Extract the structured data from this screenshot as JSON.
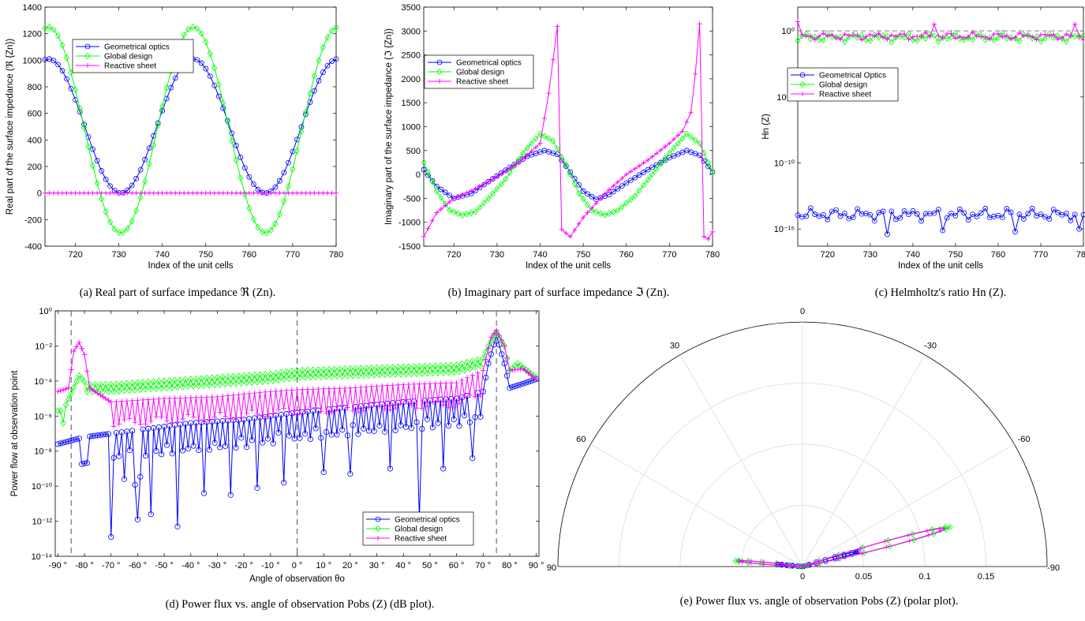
{
  "chart_data": [
    {
      "id": "a",
      "type": "line",
      "caption": "(a) Real part of surface impedance ℜ (Zn).",
      "xlabel": "Index of the unit cells",
      "ylabel": "Real part of the surface impedance (ℜ {Zn})",
      "xlim": [
        713,
        780
      ],
      "ylim": [
        -400,
        1400
      ],
      "xticks": [
        "720",
        "730",
        "740",
        "750",
        "760",
        "770",
        "780"
      ],
      "yticks": [
        "-400",
        "-200",
        "0",
        "200",
        "400",
        "600",
        "800",
        "1000",
        "1200",
        "1400"
      ],
      "legend_position": "top-center",
      "series": [
        {
          "name": "Geometrical optics",
          "color": "#0000ff",
          "marker": "circle",
          "formula": "cos",
          "center": 505,
          "amplitude": 505,
          "period": 33.3,
          "peak": 713.8
        },
        {
          "name": "Global design",
          "color": "#00ff00",
          "marker": "diamond",
          "formula": "cos",
          "center": 475,
          "amplitude": 775,
          "period": 33.3,
          "peak": 713.8
        },
        {
          "name": "Reactive sheet",
          "color": "#ff00ff",
          "marker": "plus",
          "formula": "const",
          "value": 0
        }
      ]
    },
    {
      "id": "b",
      "type": "line",
      "caption": "(b) Imaginary part of surface impedance ℑ (Zn).",
      "xlabel": "Index of the unit cells",
      "ylabel": "Imaginary part of the surface impedance (ℑ {Zn})",
      "xlim": [
        713,
        780
      ],
      "ylim": [
        -1500,
        3500
      ],
      "xticks": [
        "720",
        "730",
        "740",
        "750",
        "760",
        "770",
        "780"
      ],
      "yticks": [
        "-1500",
        "-1000",
        "-500",
        "0",
        "500",
        "1000",
        "1500",
        "2000",
        "2500",
        "3000",
        "3500"
      ],
      "legend_position": "top-left",
      "series": [
        {
          "name": "Geometrical optics",
          "color": "#0000ff",
          "marker": "circle",
          "points": [
            [
              713,
              100
            ],
            [
              716,
              -250
            ],
            [
              720,
              -500
            ],
            [
              724,
              -400
            ],
            [
              728,
              -150
            ],
            [
              733,
              150
            ],
            [
              737,
              380
            ],
            [
              741,
              500
            ],
            [
              744,
              420
            ],
            [
              747,
              50
            ],
            [
              750,
              -350
            ],
            [
              753,
              -520
            ],
            [
              756,
              -420
            ],
            [
              760,
              -180
            ],
            [
              765,
              100
            ],
            [
              770,
              350
            ],
            [
              774,
              500
            ],
            [
              777,
              400
            ],
            [
              780,
              50
            ]
          ]
        },
        {
          "name": "Global design",
          "color": "#00ff00",
          "marker": "diamond",
          "points": [
            [
              713,
              250
            ],
            [
              716,
              -350
            ],
            [
              719,
              -750
            ],
            [
              722,
              -850
            ],
            [
              725,
              -780
            ],
            [
              728,
              -500
            ],
            [
              732,
              -100
            ],
            [
              736,
              450
            ],
            [
              740,
              850
            ],
            [
              743,
              700
            ],
            [
              746,
              200
            ],
            [
              749,
              -400
            ],
            [
              752,
              -750
            ],
            [
              755,
              -850
            ],
            [
              758,
              -750
            ],
            [
              762,
              -450
            ],
            [
              766,
              0
            ],
            [
              770,
              450
            ],
            [
              774,
              850
            ],
            [
              777,
              650
            ],
            [
              780,
              50
            ]
          ]
        },
        {
          "name": "Reactive sheet",
          "color": "#ff00ff",
          "marker": "plus",
          "points": [
            [
              713,
              -1300
            ],
            [
              716,
              -800
            ],
            [
              720,
              -500
            ],
            [
              725,
              -300
            ],
            [
              730,
              -50
            ],
            [
              735,
              250
            ],
            [
              740,
              650
            ],
            [
              742,
              1700
            ],
            [
              743,
              2400
            ],
            [
              744,
              3100
            ],
            [
              745,
              -1150
            ],
            [
              747,
              -1300
            ],
            [
              750,
              -900
            ],
            [
              755,
              -400
            ],
            [
              760,
              0
            ],
            [
              765,
              300
            ],
            [
              770,
              650
            ],
            [
              773,
              900
            ],
            [
              775,
              1300
            ],
            [
              776,
              2100
            ],
            [
              777,
              3150
            ],
            [
              778,
              -1300
            ],
            [
              779,
              -1350
            ],
            [
              780,
              -1200
            ]
          ]
        }
      ]
    },
    {
      "id": "c",
      "type": "line",
      "caption": "(c) Helmholtz's ratio Hn (Z).",
      "xlabel": "Index of the unit cells",
      "ylabel": "Hn (Z)",
      "xlim": [
        713,
        780
      ],
      "ylim_log10": [
        -16.3,
        1.8
      ],
      "yscale": "log",
      "xticks": [
        "720",
        "730",
        "740",
        "750",
        "760",
        "770",
        "780"
      ],
      "yticks": [
        "10⁰",
        "10⁻⁵",
        "10⁻¹⁰",
        "10⁻¹⁵"
      ],
      "reference_line": 1,
      "legend_position": "top-left",
      "series": [
        {
          "name": "Geometrical Optics",
          "color": "#0000ff",
          "marker": "circle",
          "log10_center": -13.9,
          "jitter": 0.5,
          "dips": [
            [
              734,
              -15.4
            ],
            [
              747,
              -15.1
            ],
            [
              764,
              -15.2
            ],
            [
              779,
              -15.0
            ]
          ]
        },
        {
          "name": "Global design",
          "color": "#00ff00",
          "marker": "diamond",
          "log10_center": -0.5,
          "jitter": 0.35
        },
        {
          "name": "Reactive sheet",
          "color": "#ff00ff",
          "marker": "plus",
          "log10_center": -0.4,
          "jitter": 0.3,
          "peaks": [
            [
              713,
              0.7
            ],
            [
              745,
              0.5
            ],
            [
              778,
              0.5
            ]
          ]
        }
      ]
    },
    {
      "id": "d",
      "type": "line",
      "caption": "(d) Power flux vs. angle of observation Pobs (Z) (dB plot).",
      "xlabel": "Angle of observation θo",
      "ylabel": "Power flow at observation point",
      "xlim": [
        -91,
        91
      ],
      "ylim_log10": [
        -14,
        0
      ],
      "yscale": "log",
      "xticks": [
        "-90 °",
        "-80 °",
        "-70 °",
        "-60 °",
        "-50 °",
        "-40 °",
        "-30 °",
        "-20 °",
        "-10 °",
        "0 °",
        "10 °",
        "20 °",
        "30 °",
        "40 °",
        "50 °",
        "60 °",
        "70 °",
        "80 °",
        "90 °"
      ],
      "yticks": [
        "10⁰",
        "10⁻²",
        "10⁻⁴",
        "10⁻⁶",
        "10⁻⁸",
        "10⁻¹⁰",
        "10⁻¹²",
        "10⁻¹⁴"
      ],
      "vlines": [
        -85,
        0,
        75
      ],
      "legend_position": "bottom-right",
      "series": [
        {
          "name": "Geometrical optics",
          "color": "#0000ff",
          "marker": "circle",
          "base": [
            [
              -90,
              -7.6
            ],
            [
              -80,
              -7.2
            ],
            [
              -60,
              -6.8
            ],
            [
              -40,
              -6.4
            ],
            [
              -20,
              -6.2
            ],
            [
              0,
              -5.8
            ],
            [
              20,
              -5.5
            ],
            [
              40,
              -5.2
            ],
            [
              60,
              -5.0
            ],
            [
              70,
              -4.6
            ],
            [
              72,
              -3.0
            ],
            [
              75,
              -1.4
            ],
            [
              78,
              -3.0
            ],
            [
              80,
              -4.4
            ],
            [
              90,
              -3.9
            ]
          ],
          "dips": [
            [
              -70,
              -12.9
            ],
            [
              -65,
              -9.6
            ],
            [
              -60,
              -10.4
            ],
            [
              -55,
              -11.6
            ],
            [
              -45,
              -12.3
            ],
            [
              -35,
              -10.4
            ],
            [
              -25,
              -10.5
            ],
            [
              -15,
              -10.1
            ],
            [
              -5,
              -9.8
            ],
            [
              10,
              -9.2
            ],
            [
              20,
              -9.3
            ],
            [
              35,
              -9.0
            ],
            [
              46,
              -11.9
            ],
            [
              55,
              -9.0
            ],
            [
              66,
              -8.4
            ]
          ],
          "hump": [
            [
              -85,
              -7.4
            ]
          ]
        },
        {
          "name": "Global design",
          "color": "#00ff00",
          "marker": "diamond",
          "base": [
            [
              -90,
              -5.7
            ],
            [
              -88,
              -5.7
            ],
            [
              -85,
              -4.7
            ],
            [
              -82,
              -3.7
            ],
            [
              -79,
              -4.2
            ],
            [
              -70,
              -4.2
            ],
            [
              -50,
              -4.0
            ],
            [
              -30,
              -3.8
            ],
            [
              -10,
              -3.6
            ],
            [
              0,
              -3.4
            ],
            [
              20,
              -3.3
            ],
            [
              40,
              -3.2
            ],
            [
              60,
              -3.1
            ],
            [
              70,
              -2.7
            ],
            [
              72,
              -2.0
            ],
            [
              75,
              -1.2
            ],
            [
              78,
              -2.0
            ],
            [
              80,
              -3.4
            ],
            [
              83,
              -3.0
            ],
            [
              90,
              -3.8
            ]
          ]
        },
        {
          "name": "Reactive sheet",
          "color": "#ff00ff",
          "marker": "plus",
          "base": [
            [
              -90,
              -4.6
            ],
            [
              -86,
              -4.4
            ],
            [
              -84,
              -2.3
            ],
            [
              -82,
              -1.8
            ],
            [
              -80,
              -2.5
            ],
            [
              -78,
              -4.4
            ],
            [
              -70,
              -5.2
            ],
            [
              -50,
              -5.0
            ],
            [
              -30,
              -4.9
            ],
            [
              -10,
              -4.6
            ],
            [
              0,
              -4.5
            ],
            [
              20,
              -4.4
            ],
            [
              40,
              -4.2
            ],
            [
              60,
              -4.1
            ],
            [
              70,
              -3.4
            ],
            [
              73,
              -1.5
            ],
            [
              75,
              -1.1
            ],
            [
              78,
              -2.0
            ],
            [
              80,
              -3.4
            ],
            [
              85,
              -3.3
            ],
            [
              90,
              -3.9
            ]
          ]
        }
      ]
    },
    {
      "id": "e",
      "type": "polar",
      "caption": "(e) Power flux vs. angle of observation Pobs (Z) (polar plot).",
      "theta_labels": [
        "0",
        "30",
        "-30",
        "60",
        "-60",
        "90",
        "-90"
      ],
      "r_labels": [
        "0",
        "0.05",
        "0.1",
        "0.15"
      ],
      "rlim": [
        0,
        0.2
      ],
      "series": [
        {
          "name": "Geometrical optics",
          "color": "#0000ff",
          "lobes": [
            [
              -75,
              0.047
            ],
            [
              85,
              0.021
            ]
          ]
        },
        {
          "name": "Global design",
          "color": "#00ff00",
          "lobes": [
            [
              -75,
              0.125
            ],
            [
              85,
              0.055
            ]
          ]
        },
        {
          "name": "Reactive sheet",
          "color": "#ff00ff",
          "lobes": [
            [
              -75,
              0.12
            ],
            [
              85,
              0.052
            ]
          ]
        }
      ]
    }
  ]
}
